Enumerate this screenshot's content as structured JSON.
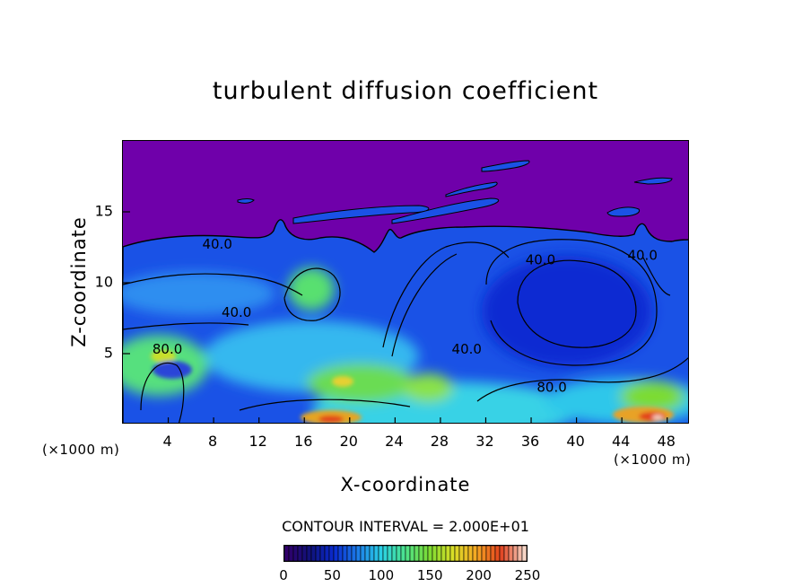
{
  "chart_data": {
    "type": "heatmap",
    "title": "turbulent diffusion coefficient",
    "xlabel": "X-coordinate",
    "ylabel": "Z-coordinate",
    "x_unit": "(×1000 m)",
    "z_unit": "(×1000 m)",
    "xlim": [
      0,
      50
    ],
    "ylim": [
      0,
      20
    ],
    "x_ticks": [
      4,
      8,
      12,
      16,
      20,
      24,
      28,
      32,
      36,
      40,
      44,
      48
    ],
    "y_ticks": [
      5,
      10,
      15
    ],
    "contour_interval_text": "CONTOUR INTERVAL = 2.000E+01",
    "contour_labels": [
      {
        "text": "40.0",
        "x": 7,
        "z": 12.4
      },
      {
        "text": "40.0",
        "x": 8.7,
        "z": 7.6
      },
      {
        "text": "80.0",
        "x": 2.6,
        "z": 5.0
      },
      {
        "text": "40.0",
        "x": 35.5,
        "z": 11.3
      },
      {
        "text": "40.0",
        "x": 29,
        "z": 5.0
      },
      {
        "text": "80.0",
        "x": 36.5,
        "z": 2.3
      },
      {
        "text": "40.0",
        "x": 44.5,
        "z": 11.6
      }
    ],
    "colorbar": {
      "min": 0,
      "max": 250,
      "ticks": [
        0,
        50,
        100,
        150,
        200,
        250
      ],
      "colors": [
        "#30006a",
        "#10127a",
        "#0a2bd0",
        "#1c7ce8",
        "#2ad1e6",
        "#4ce38a",
        "#7cdb32",
        "#d9de27",
        "#f5a623",
        "#e2411d",
        "#f6d5c6"
      ]
    }
  }
}
